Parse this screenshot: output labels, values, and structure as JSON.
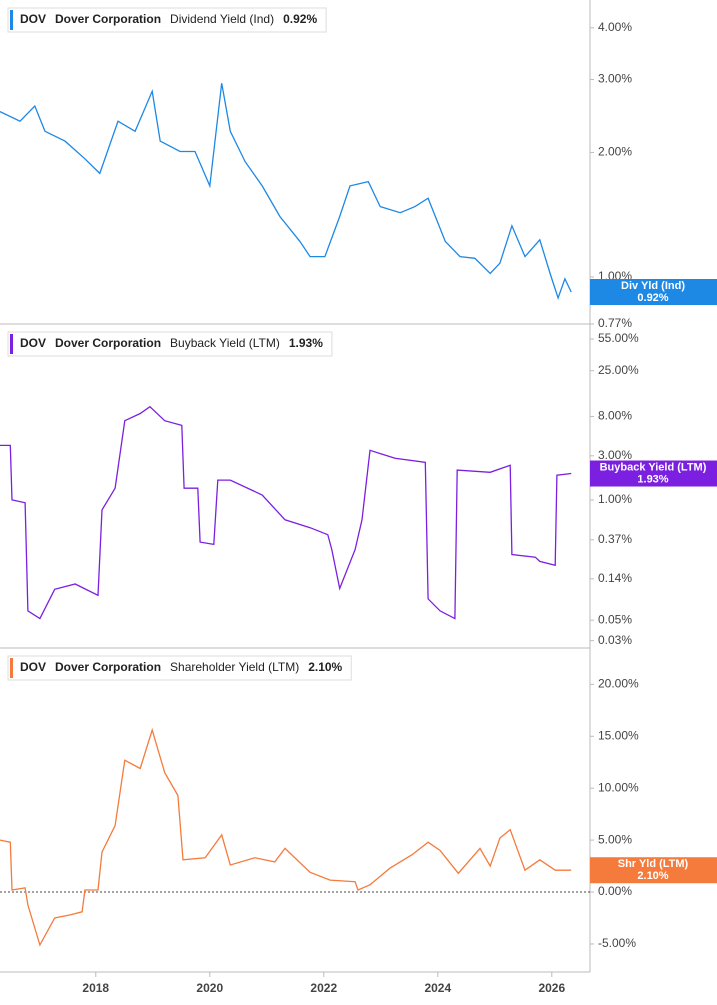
{
  "chart_data": [
    {
      "type": "line",
      "log_scale": true,
      "ticker": "DOV",
      "company": "Dover Corporation",
      "badge_label": "Div Yld (Ind)",
      "current": 0.92,
      "current_label": "0.92%",
      "x": [
        2016.32,
        2016.67,
        2016.93,
        2017.11,
        2017.46,
        2017.81,
        2018.07,
        2018.39,
        2018.69,
        2018.99,
        2019.13,
        2019.48,
        2019.74,
        2020.0,
        2020.21,
        2020.36,
        2020.62,
        2020.92,
        2021.23,
        2021.58,
        2021.76,
        2022.02,
        2022.28,
        2022.46,
        2022.78,
        2022.99,
        2023.34,
        2023.6,
        2023.83,
        2024.13,
        2024.39,
        2024.65,
        2024.92,
        2025.09,
        2025.3,
        2025.53,
        2025.79,
        2025.97,
        2026.11,
        2026.23,
        2026.34
      ],
      "series": [
        {
          "name": "Dividend Yield (Ind)",
          "color": "#1e88e5",
          "values": [
            2.51,
            2.38,
            2.59,
            2.25,
            2.13,
            1.93,
            1.78,
            2.38,
            2.25,
            2.81,
            2.13,
            2.01,
            2.01,
            1.66,
            2.94,
            2.25,
            1.9,
            1.66,
            1.4,
            1.22,
            1.12,
            1.12,
            1.4,
            1.66,
            1.7,
            1.48,
            1.43,
            1.48,
            1.55,
            1.22,
            1.12,
            1.11,
            1.02,
            1.08,
            1.33,
            1.12,
            1.23,
            1.02,
            0.89,
            0.99,
            0.92
          ]
        }
      ],
      "xlim": [
        2016.32,
        2026.67
      ],
      "ylim": [
        0.77,
        4.67
      ],
      "yticks": [
        {
          "value": 4,
          "label": "4.00%"
        },
        {
          "value": 3,
          "label": "3.00%"
        },
        {
          "value": 2,
          "label": "2.00%"
        },
        {
          "value": 1,
          "label": "1.00%"
        },
        {
          "value": 0.77,
          "label": "0.77%"
        }
      ]
    },
    {
      "type": "line",
      "log_scale": true,
      "ticker": "DOV",
      "company": "Dover Corporation",
      "badge_label": "Buyback Yield (LTM)",
      "current": 1.93,
      "current_label": "1.93%",
      "x": [
        2016.32,
        2016.5,
        2016.53,
        2016.76,
        2016.81,
        2017.02,
        2017.28,
        2017.64,
        2018.04,
        2018.11,
        2018.34,
        2018.51,
        2018.78,
        2018.95,
        2019.21,
        2019.51,
        2019.55,
        2019.79,
        2019.83,
        2020.07,
        2020.14,
        2020.36,
        2020.92,
        2021.32,
        2021.76,
        2022.07,
        2022.14,
        2022.28,
        2022.55,
        2022.67,
        2022.81,
        2023.25,
        2023.78,
        2023.83,
        2024.04,
        2024.3,
        2024.34,
        2024.92,
        2025.27,
        2025.3,
        2025.71,
        2025.79,
        2026.06,
        2026.09,
        2026.34
      ],
      "series": [
        {
          "name": "Buyback Yield (LTM)",
          "color": "#7b1fe0",
          "values": [
            3.89,
            3.89,
            1.0,
            0.93,
            0.063,
            0.052,
            0.108,
            0.123,
            0.093,
            0.78,
            1.34,
            7.2,
            8.6,
            10.2,
            7.2,
            6.4,
            1.34,
            1.34,
            0.35,
            0.33,
            1.64,
            1.64,
            1.13,
            0.61,
            0.5,
            0.42,
            0.29,
            0.11,
            0.29,
            0.61,
            3.44,
            2.82,
            2.55,
            0.085,
            0.063,
            0.052,
            2.1,
            1.99,
            2.37,
            0.257,
            0.24,
            0.216,
            0.196,
            1.85,
            1.93
          ]
        }
      ],
      "xlim": [
        2016.32,
        2026.67
      ],
      "ylim": [
        0.025,
        80
      ],
      "yticks": [
        {
          "value": 55,
          "label": "55.00%"
        },
        {
          "value": 25,
          "label": "25.00%"
        },
        {
          "value": 8,
          "label": "8.00%"
        },
        {
          "value": 3,
          "label": "3.00%"
        },
        {
          "value": 1,
          "label": "1.00%"
        },
        {
          "value": 0.37,
          "label": "0.37%"
        },
        {
          "value": 0.14,
          "label": "0.14%"
        },
        {
          "value": 0.05,
          "label": "0.05%"
        },
        {
          "value": 0.03,
          "label": "0.03%"
        }
      ]
    },
    {
      "type": "line",
      "log_scale": false,
      "zero_line": true,
      "ticker": "DOV",
      "company": "Dover Corporation",
      "badge_label": "Shr Yld (LTM)",
      "current": 2.1,
      "current_label": "2.10%",
      "x": [
        2016.32,
        2016.5,
        2016.53,
        2016.76,
        2016.81,
        2017.02,
        2017.28,
        2017.55,
        2017.76,
        2017.81,
        2018.04,
        2018.11,
        2018.34,
        2018.51,
        2018.78,
        2018.99,
        2019.21,
        2019.44,
        2019.53,
        2019.92,
        2020.21,
        2020.36,
        2020.79,
        2021.14,
        2021.32,
        2021.76,
        2022.11,
        2022.55,
        2022.6,
        2022.81,
        2023.16,
        2023.55,
        2023.83,
        2024.04,
        2024.36,
        2024.74,
        2024.92,
        2025.09,
        2025.27,
        2025.53,
        2025.79,
        2026.06,
        2026.34
      ],
      "series": [
        {
          "name": "Shareholder Yield (LTM)",
          "color": "#f47b3c",
          "values": [
            5.0,
            4.8,
            0.2,
            0.4,
            -1.25,
            -5.1,
            -2.5,
            -2.2,
            -1.9,
            0.2,
            0.2,
            3.85,
            6.4,
            12.7,
            11.9,
            15.6,
            11.5,
            9.3,
            3.1,
            3.3,
            5.5,
            2.6,
            3.3,
            2.9,
            4.2,
            1.9,
            1.15,
            1.0,
            0.2,
            0.7,
            2.3,
            3.6,
            4.8,
            4.0,
            1.8,
            4.2,
            2.5,
            5.2,
            6.0,
            2.1,
            3.1,
            2.1,
            2.1
          ]
        }
      ],
      "xlim": [
        2016.32,
        2026.67
      ],
      "ylim": [
        -7.7,
        23.5
      ],
      "yticks": [
        {
          "value": 20,
          "label": "20.00%"
        },
        {
          "value": 15,
          "label": "15.00%"
        },
        {
          "value": 10,
          "label": "10.00%"
        },
        {
          "value": 5,
          "label": "5.00%"
        },
        {
          "value": 0,
          "label": "0.00%"
        },
        {
          "value": -5,
          "label": "-5.00%"
        }
      ],
      "xticks": [
        2018,
        2020,
        2022,
        2024,
        2026
      ]
    }
  ]
}
